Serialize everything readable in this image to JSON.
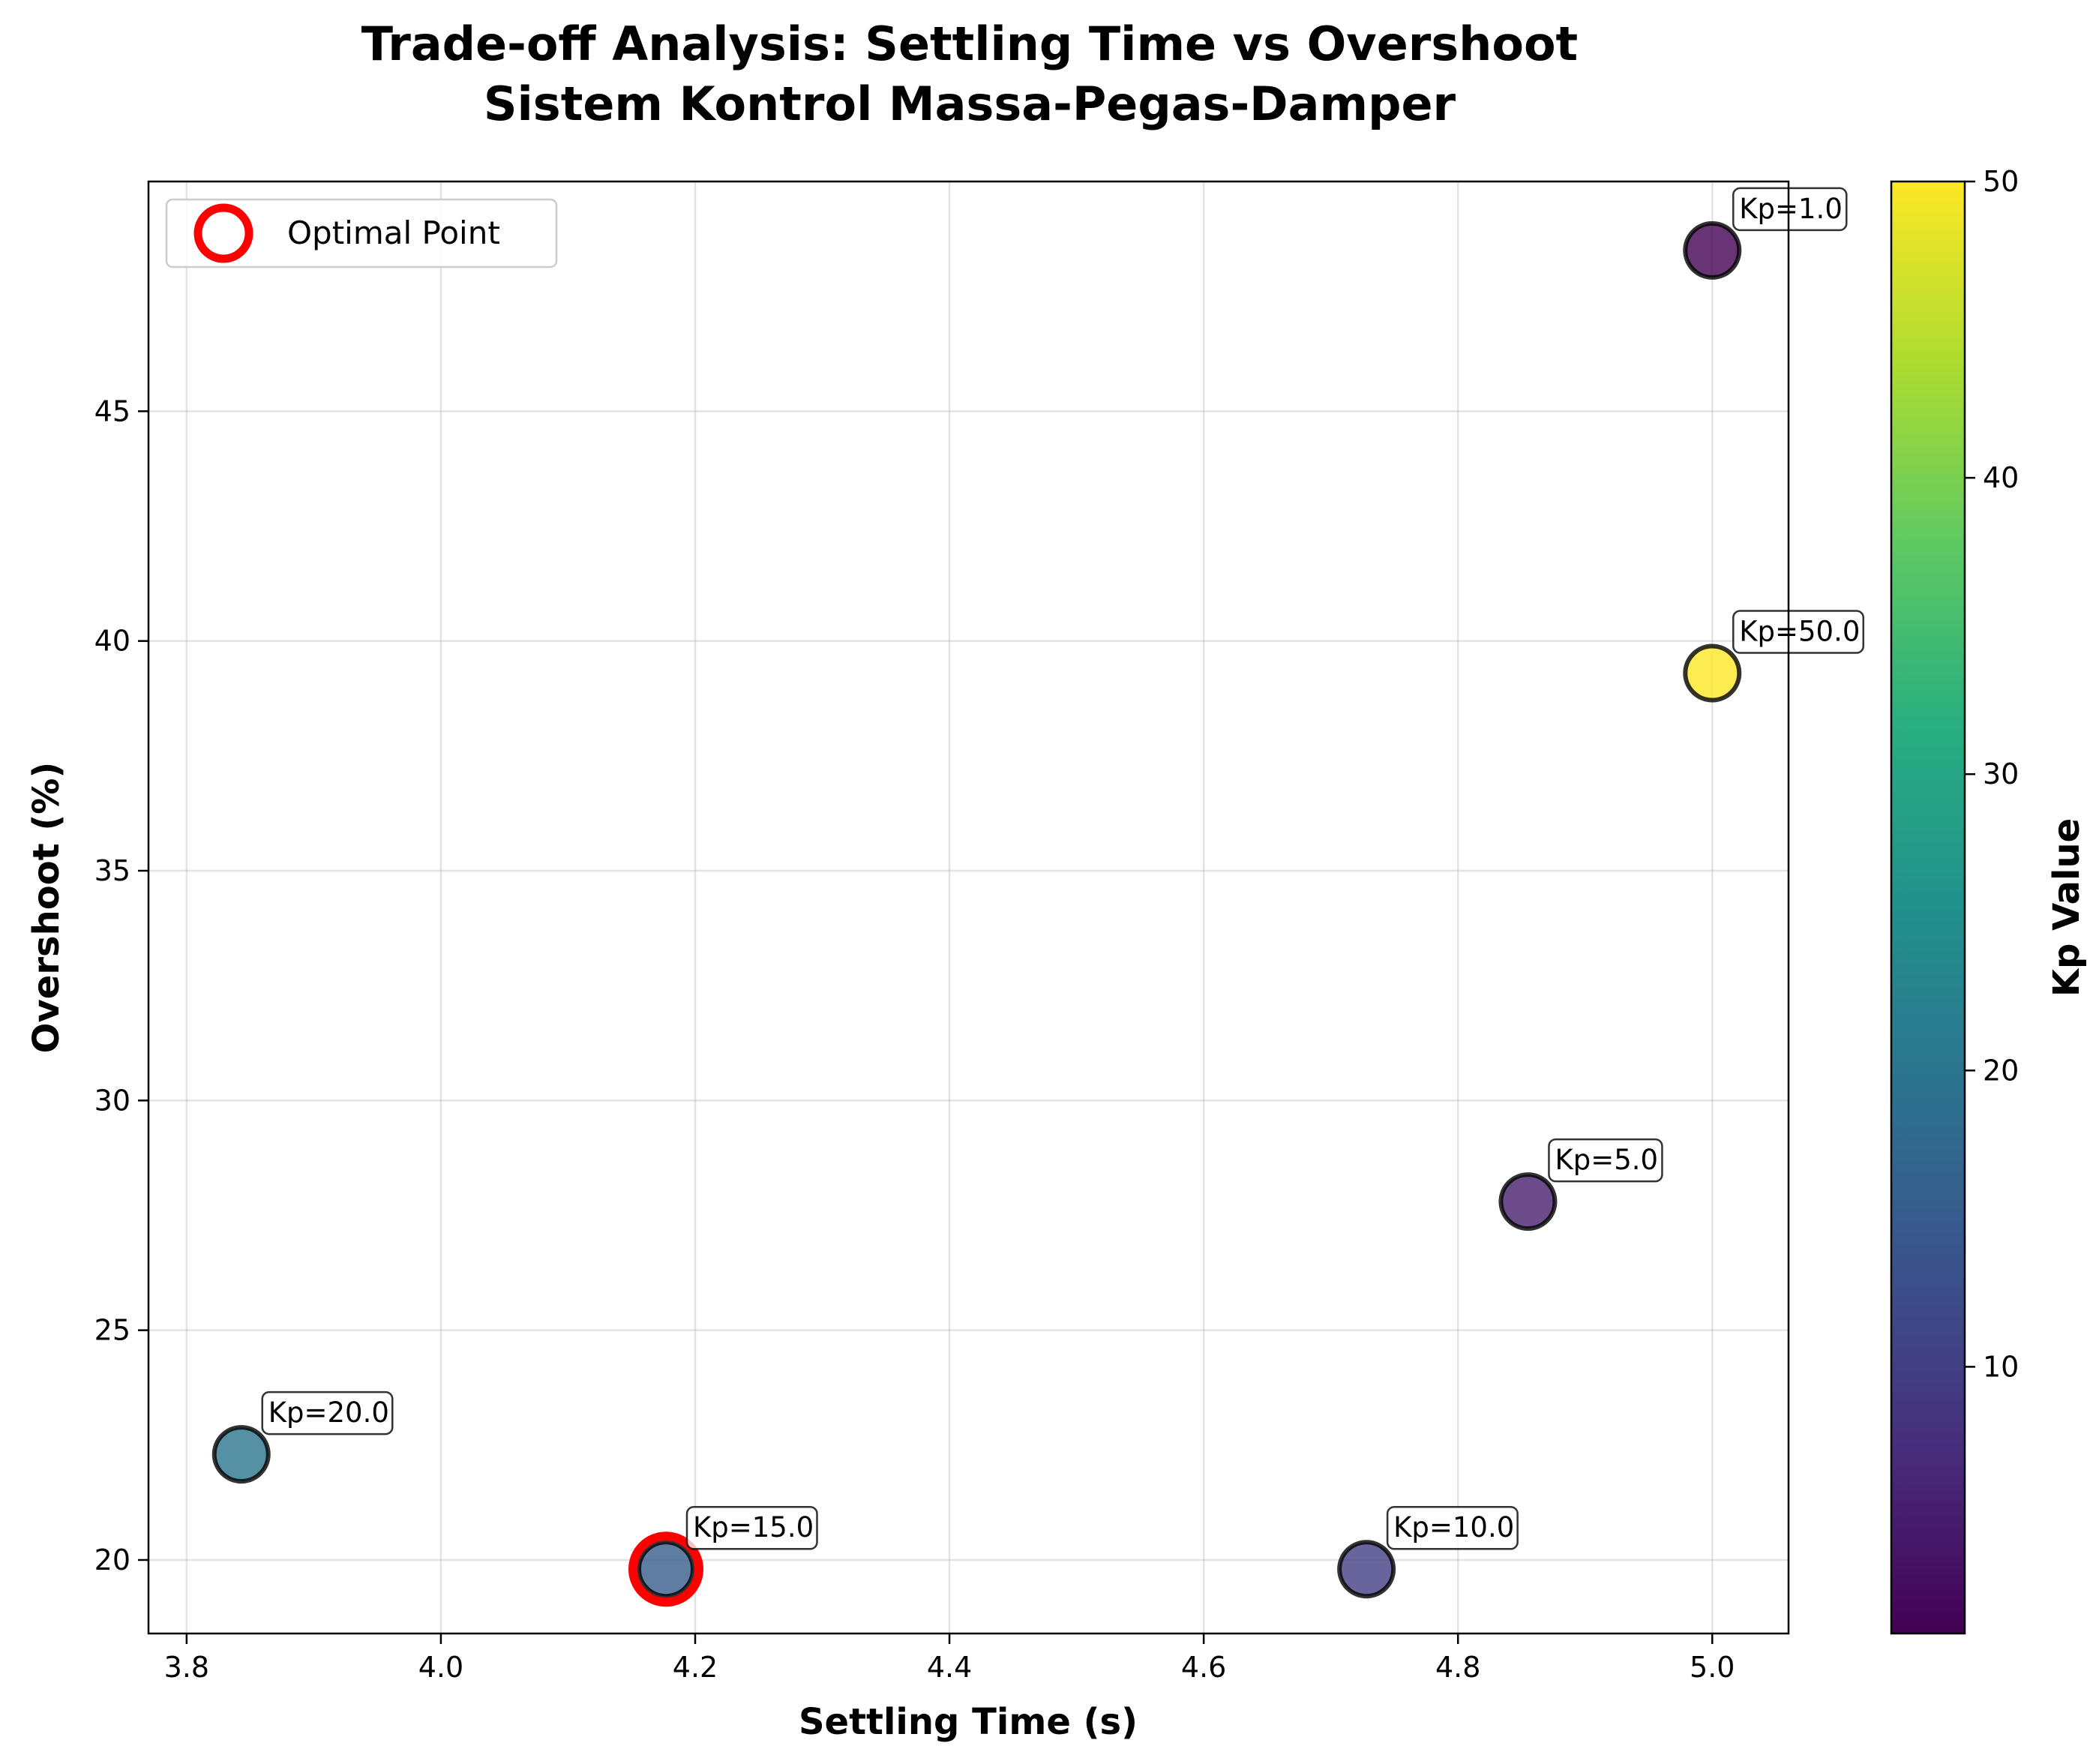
{
  "chart_data": {
    "type": "scatter",
    "title": "Trade-off Analysis: Settling Time vs Overshoot",
    "subtitle": "Sistem Kontrol Massa-Pegas-Damper",
    "xlabel": "Settling Time (s)",
    "ylabel": "Overshoot (%)",
    "xlim": [
      3.77,
      5.06
    ],
    "ylim": [
      18.4,
      50.0
    ],
    "xticks": [
      3.8,
      4.0,
      4.2,
      4.4,
      4.6,
      4.8,
      5.0
    ],
    "xtick_labels": [
      "3.8",
      "4.0",
      "4.2",
      "4.4",
      "4.6",
      "4.8",
      "5.0"
    ],
    "yticks": [
      20,
      25,
      30,
      35,
      40,
      45
    ],
    "ytick_labels": [
      "20",
      "25",
      "30",
      "35",
      "40",
      "45"
    ],
    "grid": true,
    "colormap": "viridis",
    "points": [
      {
        "label": "Kp=1.0",
        "kp": 1.0,
        "x": 5.0,
        "y": 48.5
      },
      {
        "label": "Kp=5.0",
        "kp": 5.0,
        "x": 4.855,
        "y": 27.8
      },
      {
        "label": "Kp=10.0",
        "kp": 10.0,
        "x": 4.728,
        "y": 19.8
      },
      {
        "label": "Kp=15.0",
        "kp": 15.0,
        "x": 4.177,
        "y": 19.8
      },
      {
        "label": "Kp=20.0",
        "kp": 20.0,
        "x": 3.843,
        "y": 22.3
      },
      {
        "label": "Kp=50.0",
        "kp": 50.0,
        "x": 5.0,
        "y": 39.3
      }
    ],
    "optimal_point": {
      "kp": 15.0,
      "x": 4.177,
      "y": 19.8,
      "color": "#ff0000"
    },
    "legend": {
      "entries": [
        "Optimal Point"
      ],
      "placement": "upper-left"
    },
    "colorbar": {
      "label": "Kp Value",
      "range": [
        1.0,
        50.0
      ],
      "ticks": [
        10,
        20,
        30,
        40,
        50
      ],
      "tick_labels": [
        "10",
        "20",
        "30",
        "40",
        "50"
      ]
    }
  }
}
